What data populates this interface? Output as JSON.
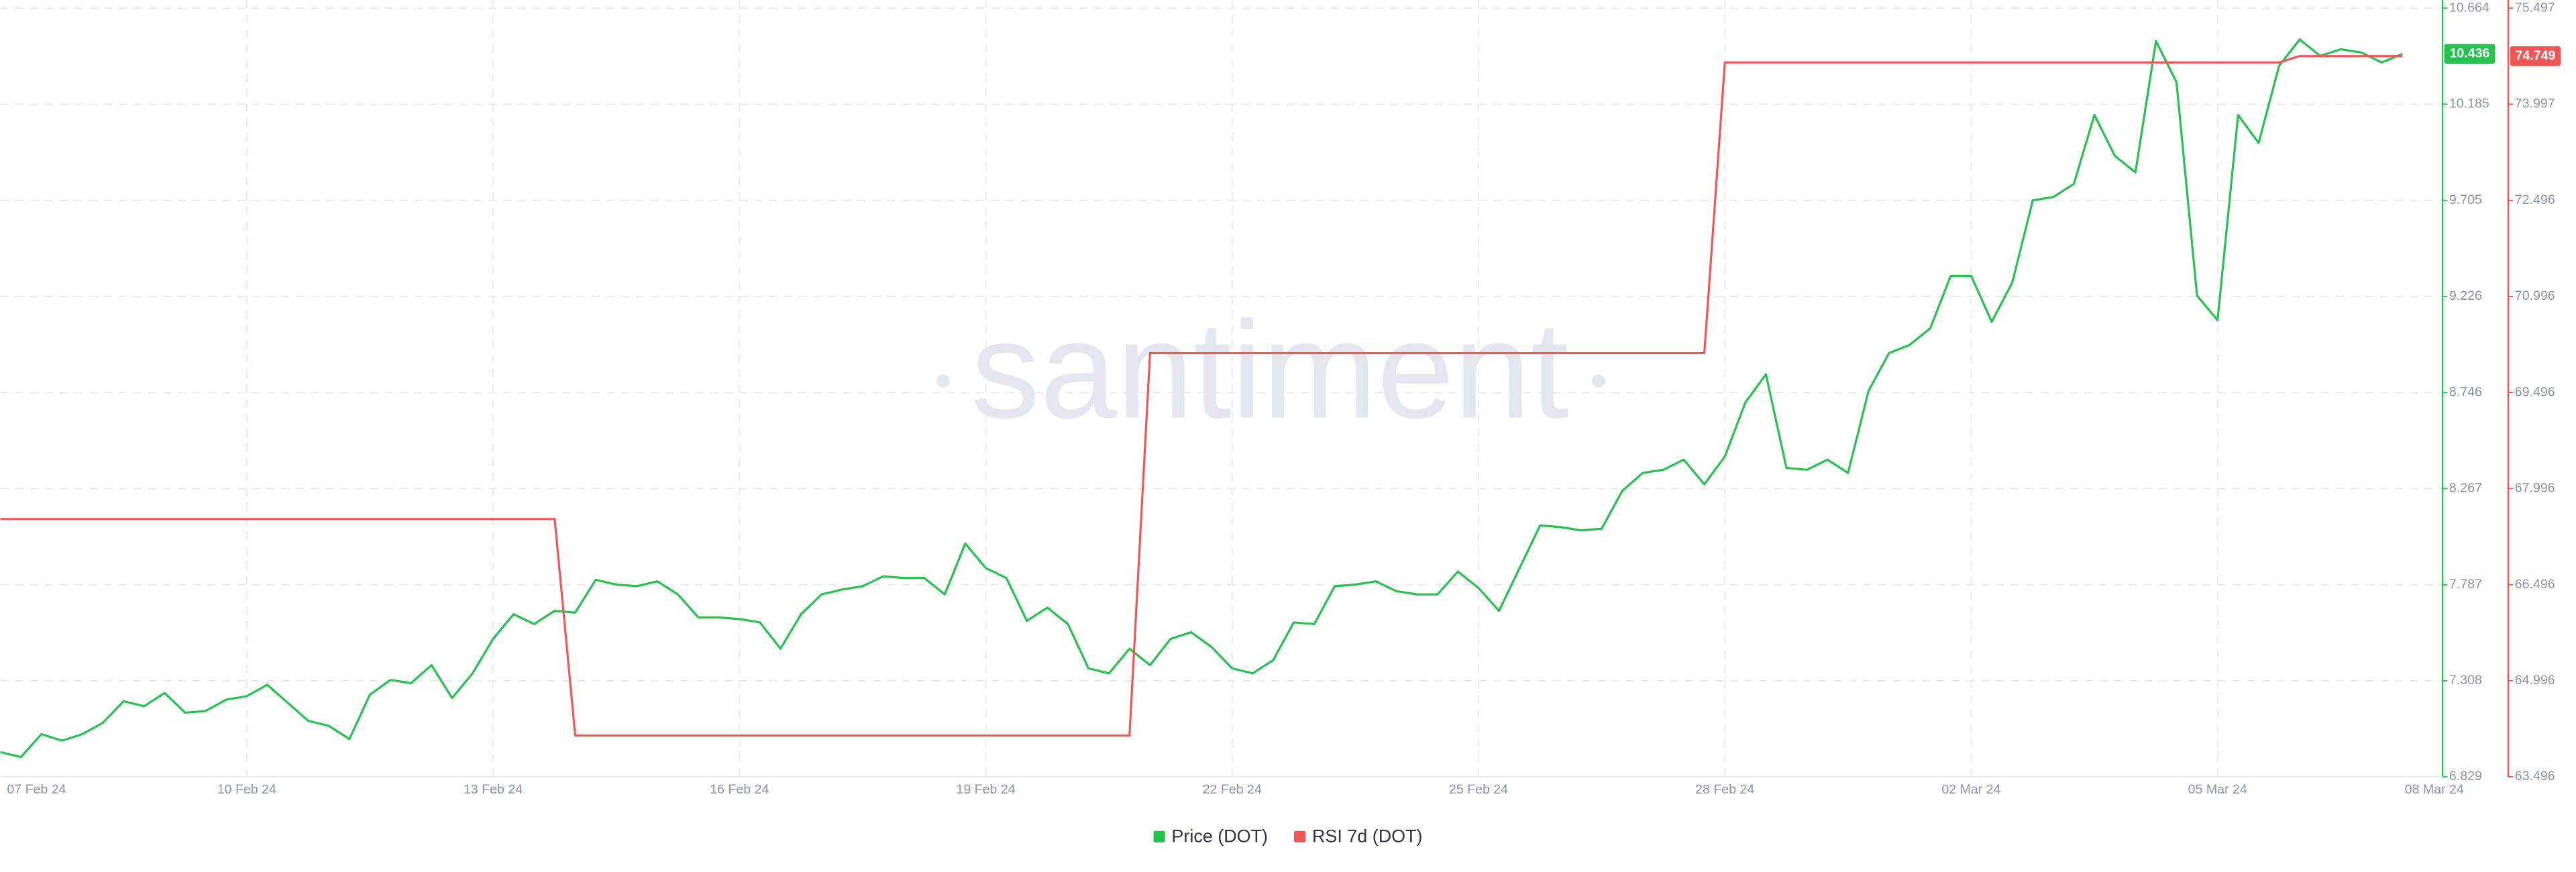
{
  "chart_data": {
    "type": "line",
    "watermark": "santiment",
    "categories": [
      "07 Feb 24",
      null,
      null,
      null,
      null,
      null,
      null,
      null,
      null,
      null,
      null,
      null,
      "10 Feb 24",
      null,
      null,
      null,
      null,
      null,
      null,
      null,
      null,
      null,
      null,
      null,
      "13 Feb 24",
      null,
      null,
      null,
      null,
      null,
      null,
      null,
      null,
      null,
      null,
      null,
      "16 Feb 24",
      null,
      null,
      null,
      null,
      null,
      null,
      null,
      null,
      null,
      null,
      null,
      "19 Feb 24",
      null,
      null,
      null,
      null,
      null,
      null,
      null,
      null,
      null,
      null,
      null,
      "22 Feb 24",
      null,
      null,
      null,
      null,
      null,
      null,
      null,
      null,
      null,
      null,
      null,
      "25 Feb 24",
      null,
      null,
      null,
      null,
      null,
      null,
      null,
      null,
      null,
      null,
      null,
      "28 Feb 24",
      null,
      null,
      null,
      null,
      null,
      null,
      null,
      null,
      null,
      null,
      null,
      "02 Mar 24",
      null,
      null,
      null,
      null,
      null,
      null,
      null,
      null,
      null,
      null,
      null,
      "05 Mar 24",
      null,
      null,
      null,
      null,
      null,
      null,
      null,
      null,
      null,
      null,
      null,
      "08 Mar 24"
    ],
    "series": [
      {
        "name": "Price (DOT)",
        "color": "#26c24f",
        "values": [
          6.952,
          6.927,
          7.042,
          7.009,
          7.042,
          7.099,
          7.206,
          7.181,
          7.247,
          7.149,
          7.157,
          7.214,
          7.231,
          7.288,
          7.198,
          7.108,
          7.083,
          7.017,
          7.239,
          7.312,
          7.296,
          7.386,
          7.222,
          7.345,
          7.517,
          7.64,
          7.591,
          7.657,
          7.648,
          7.812,
          7.788,
          7.78,
          7.804,
          7.739,
          7.624,
          7.624,
          7.616,
          7.599,
          7.468,
          7.64,
          7.739,
          7.763,
          7.78,
          7.829,
          7.821,
          7.821,
          7.739,
          7.993,
          7.87,
          7.821,
          7.607,
          7.673,
          7.591,
          7.37,
          7.345,
          7.468,
          7.386,
          7.517,
          7.55,
          7.476,
          7.37,
          7.345,
          7.411,
          7.599,
          7.591,
          7.78,
          7.788,
          7.804,
          7.755,
          7.739,
          7.739,
          7.853,
          7.771,
          7.657,
          7.87,
          8.083,
          8.075,
          8.058,
          8.067,
          8.255,
          8.345,
          8.361,
          8.411,
          8.288,
          8.427,
          8.697,
          8.837,
          8.37,
          8.361,
          8.411,
          8.345,
          8.755,
          8.943,
          8.984,
          9.066,
          9.328,
          9.328,
          9.099,
          9.295,
          9.705,
          9.722,
          9.787,
          10.131,
          9.927,
          9.845,
          10.5,
          10.295,
          9.23,
          9.107,
          10.131,
          9.992,
          10.377,
          10.508,
          10.426,
          10.459,
          10.443,
          10.393,
          10.436,
          null,
          null,
          null
        ]
      },
      {
        "name": "RSI 7d (DOT)",
        "color": "#f05656",
        "axis": "y2",
        "values": [
          67.52,
          67.52,
          67.52,
          67.52,
          67.52,
          67.52,
          67.52,
          67.52,
          67.52,
          67.52,
          67.52,
          67.52,
          67.52,
          67.52,
          67.52,
          67.52,
          67.52,
          67.52,
          67.52,
          67.52,
          67.52,
          67.52,
          67.52,
          67.52,
          67.52,
          67.52,
          67.52,
          67.52,
          64.14,
          64.14,
          64.14,
          64.14,
          64.14,
          64.14,
          64.14,
          64.14,
          64.14,
          64.14,
          64.14,
          64.14,
          64.14,
          64.14,
          64.14,
          64.14,
          64.14,
          64.14,
          64.14,
          64.14,
          64.14,
          64.14,
          64.14,
          64.14,
          64.14,
          64.14,
          64.14,
          64.14,
          70.11,
          70.11,
          70.11,
          70.11,
          70.11,
          70.11,
          70.11,
          70.11,
          70.11,
          70.11,
          70.11,
          70.11,
          70.11,
          70.11,
          70.11,
          70.11,
          70.11,
          70.11,
          70.11,
          70.11,
          70.11,
          70.11,
          70.11,
          70.11,
          70.11,
          70.11,
          70.11,
          70.11,
          74.65,
          74.65,
          74.65,
          74.65,
          74.65,
          74.65,
          74.65,
          74.65,
          74.65,
          74.65,
          74.65,
          74.65,
          74.65,
          74.65,
          74.65,
          74.65,
          74.65,
          74.65,
          74.65,
          74.65,
          74.65,
          74.65,
          74.65,
          74.65,
          74.65,
          74.65,
          74.65,
          74.65,
          74.749,
          74.749,
          74.749,
          74.749,
          74.749,
          74.749,
          null,
          null,
          null
        ]
      }
    ],
    "ylim": [
      6.829,
      10.664
    ],
    "yticks": [
      6.829,
      7.308,
      7.787,
      8.267,
      8.746,
      9.226,
      9.705,
      10.185,
      10.664
    ],
    "y2lim": [
      63.496,
      75.497
    ],
    "y2ticks": [
      63.496,
      64.996,
      66.496,
      67.996,
      69.496,
      70.996,
      72.496,
      73.997,
      75.497
    ],
    "grid": true
  }
}
